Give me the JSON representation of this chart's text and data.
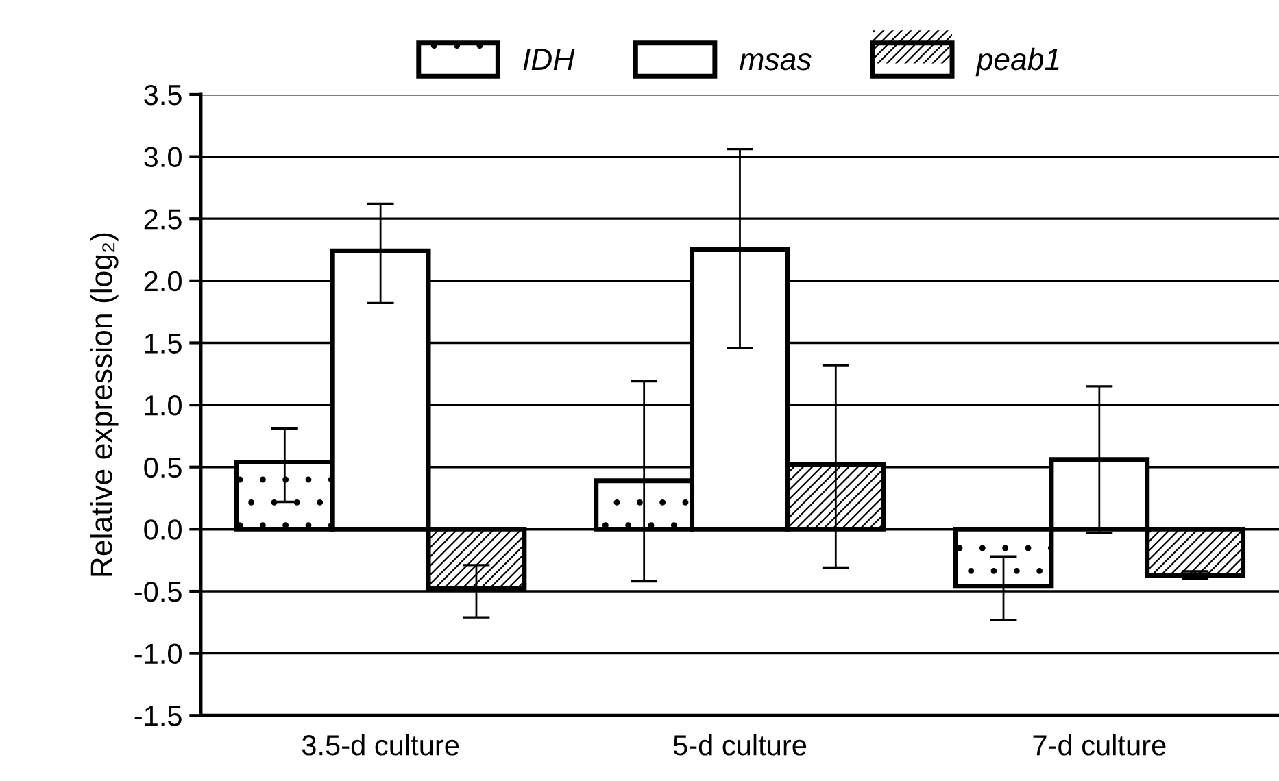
{
  "chart_data": {
    "type": "bar",
    "ylabel": "Relative expression (log₂)",
    "categories": [
      "3.5-d culture",
      "5-d culture",
      "7-d culture"
    ],
    "series": [
      {
        "name": "IDH",
        "color": "#ffffff",
        "values": [
          0.54,
          0.39,
          -0.46
        ],
        "errors": [
          [
            0.22,
            0.81
          ],
          [
            -0.42,
            1.19
          ],
          [
            -0.73,
            -0.22
          ]
        ]
      },
      {
        "name": "msas",
        "color": "#ffffff",
        "values": [
          2.24,
          2.25,
          0.56
        ],
        "errors": [
          [
            1.82,
            2.62
          ],
          [
            1.46,
            3.06
          ],
          [
            -0.03,
            1.15
          ]
        ]
      },
      {
        "name": "peab1",
        "color": "#ffffff",
        "values": [
          -0.48,
          0.52,
          -0.37
        ],
        "errors": [
          [
            -0.71,
            -0.29
          ],
          [
            -0.31,
            1.32
          ],
          [
            -0.4,
            -0.34
          ]
        ]
      }
    ],
    "ylim": [
      -1.5,
      3.5
    ],
    "yticks": [
      -1.5,
      {
        "value": -1,
        "label": "-1.0"
      },
      -0.5,
      {
        "value": 0,
        "label": "0.0"
      },
      0.5,
      {
        "value": 1,
        "label": "1.0"
      },
      1.5,
      {
        "value": 2,
        "label": "2.0"
      },
      2.5,
      {
        "value": 3,
        "label": "3.0"
      },
      3.5
    ],
    "grid": "y",
    "legend": "top"
  }
}
